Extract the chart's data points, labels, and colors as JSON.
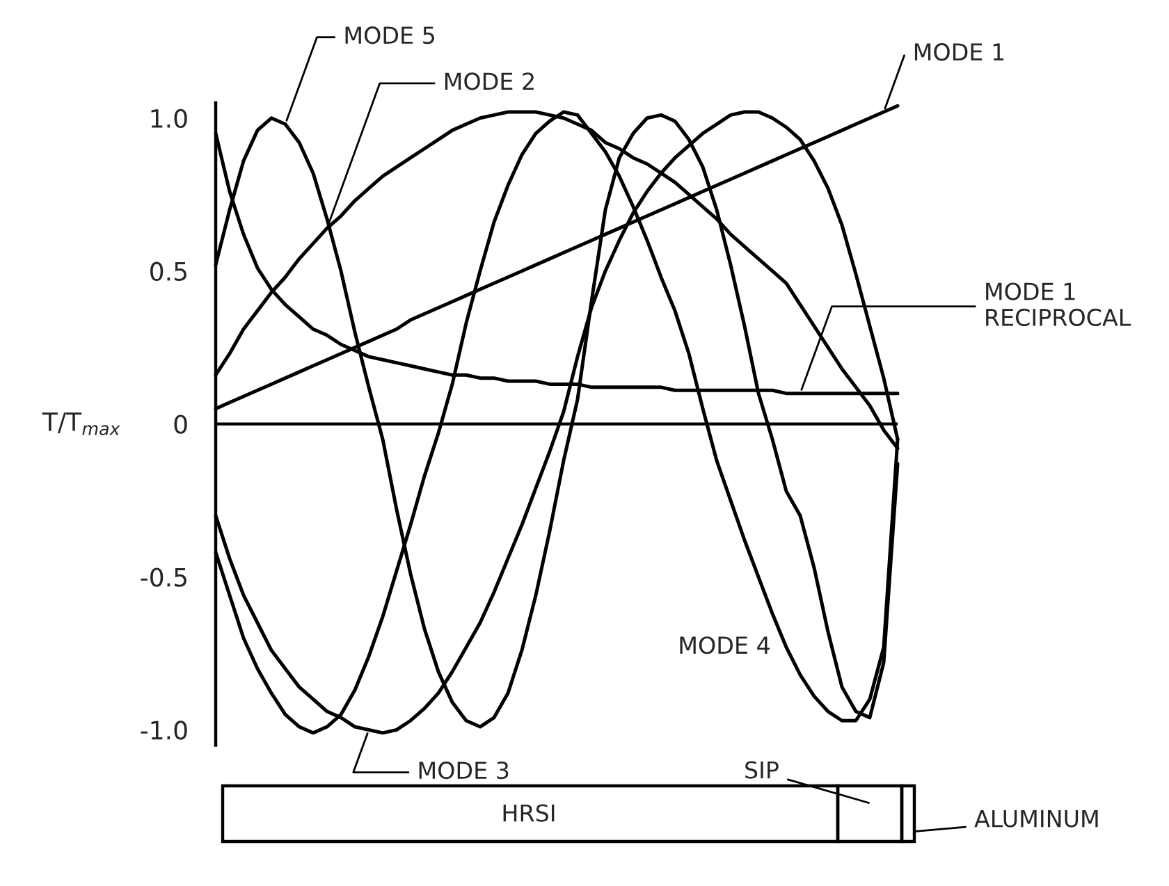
{
  "chart_data": {
    "type": "line",
    "ylabel": "T/T$_{max}$",
    "categories": [
      null,
      null,
      null,
      null,
      null,
      null,
      null,
      null,
      null,
      null,
      null,
      null,
      null,
      null,
      null,
      null,
      null,
      null,
      null,
      null,
      null,
      null,
      null,
      null,
      null,
      null,
      null,
      null,
      null,
      null,
      null,
      null,
      null,
      null,
      null,
      null,
      null,
      null,
      null,
      null,
      null,
      null,
      null,
      null,
      null,
      null,
      null,
      null,
      null,
      null
    ],
    "series": [
      {
        "name": "MODE 1",
        "color": "#000000",
        "values": [
          0.05,
          0.07,
          0.09,
          0.11,
          0.13,
          0.15,
          0.17,
          0.19,
          0.21,
          0.23,
          0.25,
          0.27,
          0.29,
          0.31,
          0.34,
          0.36,
          0.38,
          0.4,
          0.42,
          0.44,
          0.46,
          0.48,
          0.5,
          0.52,
          0.54,
          0.56,
          0.58,
          0.6,
          0.62,
          0.64,
          0.66,
          0.68,
          0.7,
          0.72,
          0.74,
          0.76,
          0.78,
          0.8,
          0.82,
          0.84,
          0.86,
          0.88,
          0.9,
          0.92,
          0.94,
          0.96,
          0.98,
          1.0,
          1.02,
          1.04
        ]
      },
      {
        "name": "MODE 2",
        "color": "#000000",
        "values": [
          0.16,
          0.23,
          0.31,
          0.37,
          0.43,
          0.48,
          0.54,
          0.59,
          0.64,
          0.68,
          0.73,
          0.77,
          0.81,
          0.84,
          0.87,
          0.9,
          0.93,
          0.96,
          0.98,
          1.0,
          1.01,
          1.02,
          1.02,
          1.02,
          1.01,
          1.0,
          0.98,
          0.96,
          0.92,
          0.9,
          0.87,
          0.85,
          0.82,
          0.79,
          0.75,
          0.71,
          0.67,
          0.62,
          0.58,
          0.54,
          0.5,
          0.46,
          0.39,
          0.32,
          0.25,
          0.18,
          0.12,
          0.06,
          -0.02,
          -0.08
        ]
      },
      {
        "name": "MODE 3",
        "color": "#000000",
        "values": [
          -0.3,
          -0.44,
          -0.56,
          -0.65,
          -0.74,
          -0.8,
          -0.86,
          -0.9,
          -0.94,
          -0.96,
          -0.99,
          -1.0,
          -1.01,
          -1.0,
          -0.97,
          -0.93,
          -0.88,
          -0.81,
          -0.73,
          -0.65,
          -0.55,
          -0.44,
          -0.33,
          -0.21,
          -0.09,
          0.04,
          0.22,
          0.38,
          0.5,
          0.6,
          0.69,
          0.76,
          0.82,
          0.87,
          0.91,
          0.95,
          0.98,
          1.01,
          1.02,
          1.02,
          1.0,
          0.97,
          0.93,
          0.86,
          0.77,
          0.65,
          0.49,
          0.32,
          0.15,
          -0.05
        ]
      },
      {
        "name": "MODE 4",
        "color": "#000000",
        "values": [
          -0.42,
          -0.56,
          -0.7,
          -0.8,
          -0.88,
          -0.95,
          -0.99,
          -1.01,
          -0.99,
          -0.95,
          -0.87,
          -0.76,
          -0.63,
          -0.48,
          -0.33,
          -0.17,
          -0.03,
          0.13,
          0.33,
          0.5,
          0.66,
          0.78,
          0.88,
          0.95,
          0.99,
          1.02,
          1.01,
          0.95,
          0.89,
          0.81,
          0.71,
          0.6,
          0.48,
          0.37,
          0.23,
          0.05,
          -0.12,
          -0.25,
          -0.38,
          -0.5,
          -0.62,
          -0.73,
          -0.82,
          -0.89,
          -0.94,
          -0.97,
          -0.97,
          -0.9,
          -0.73,
          -0.05
        ]
      },
      {
        "name": "MODE 5",
        "color": "#000000",
        "values": [
          0.52,
          0.7,
          0.86,
          0.96,
          1.0,
          0.98,
          0.92,
          0.82,
          0.67,
          0.5,
          0.3,
          0.12,
          -0.05,
          -0.28,
          -0.49,
          -0.67,
          -0.81,
          -0.91,
          -0.97,
          -0.99,
          -0.96,
          -0.88,
          -0.74,
          -0.56,
          -0.35,
          -0.12,
          0.08,
          0.4,
          0.7,
          0.87,
          0.95,
          1.0,
          1.01,
          0.99,
          0.93,
          0.84,
          0.7,
          0.52,
          0.32,
          0.1,
          -0.05,
          -0.22,
          -0.3,
          -0.47,
          -0.68,
          -0.86,
          -0.94,
          -0.96,
          -0.78,
          -0.13
        ]
      },
      {
        "name": "MODE 1\nRECIPROCAL",
        "color": "#000000",
        "values": [
          0.95,
          0.76,
          0.62,
          0.51,
          0.44,
          0.39,
          0.35,
          0.31,
          0.29,
          0.26,
          0.24,
          0.22,
          0.21,
          0.2,
          0.19,
          0.18,
          0.17,
          0.16,
          0.16,
          0.15,
          0.15,
          0.14,
          0.14,
          0.14,
          0.13,
          0.13,
          0.13,
          0.12,
          0.12,
          0.12,
          0.12,
          0.12,
          0.12,
          0.11,
          0.11,
          0.11,
          0.11,
          0.11,
          0.11,
          0.11,
          0.11,
          0.1,
          0.1,
          0.1,
          0.1,
          0.1,
          0.1,
          0.1,
          0.1,
          0.1
        ]
      }
    ],
    "ylim": [
      -1.05,
      1.05
    ],
    "yticks": [
      {
        "value": 1,
        "label": "1.0"
      },
      0.5,
      0,
      -0.5,
      {
        "value": -1,
        "label": "-1.0"
      }
    ],
    "legend": false,
    "grid": false,
    "ref_lines": [
      {
        "axis": "y",
        "value": 0
      }
    ],
    "annotations": [
      "HRSI",
      "SIP",
      "ALUMINUM"
    ]
  }
}
